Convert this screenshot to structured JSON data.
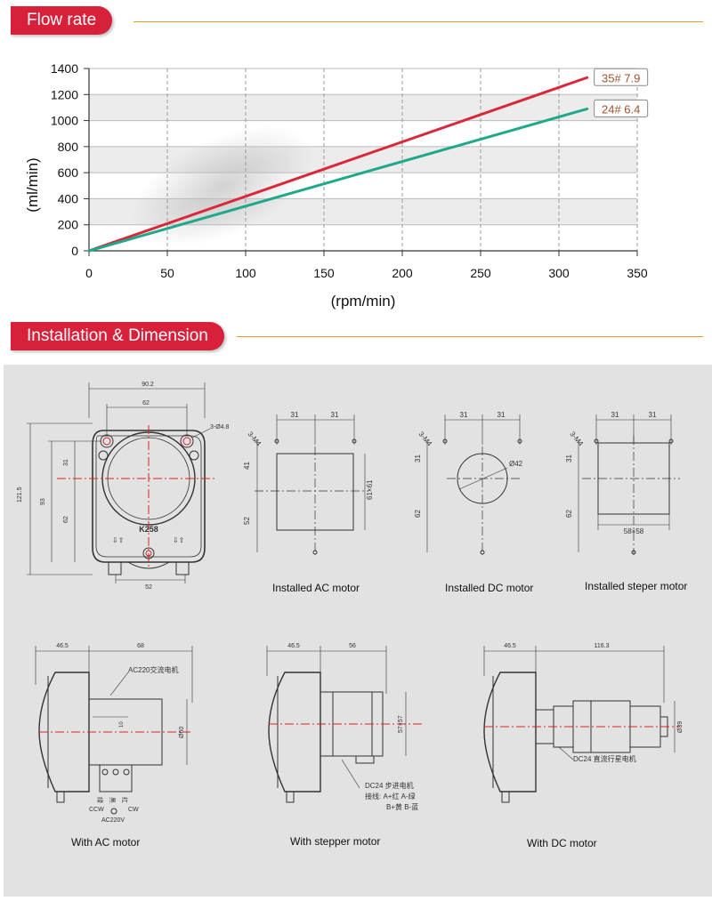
{
  "sections": {
    "flow_rate": "Flow rate",
    "installation": "Installation & Dimension"
  },
  "chart_data": {
    "type": "line",
    "xlabel": "(rpm/min)",
    "ylabel": "(ml/min)",
    "xlim": [
      0,
      350
    ],
    "ylim": [
      0,
      1400
    ],
    "xticks": [
      0,
      50,
      100,
      150,
      200,
      250,
      300,
      350
    ],
    "yticks": [
      0,
      200,
      400,
      600,
      800,
      1000,
      1200,
      1400
    ],
    "grid": true,
    "series": [
      {
        "name": "35# 7.9",
        "color": "#d8283a",
        "x": [
          0,
          318
        ],
        "y": [
          0,
          1330
        ]
      },
      {
        "name": "24# 6.4",
        "color": "#1fa88a",
        "x": [
          0,
          318
        ],
        "y": [
          0,
          1090
        ]
      }
    ]
  },
  "drawings": {
    "front": {
      "width": "90.2",
      "inner_width": "62",
      "height": "121.5",
      "h93": "93",
      "h31": "31",
      "h62": "62",
      "bottom": "52",
      "holes": "3-Ø4.8",
      "model": "K258"
    },
    "ac_install": {
      "screw": "3-M4",
      "d1": "31",
      "d2": "31",
      "h41": "41",
      "h52": "52",
      "square": "61×61"
    },
    "dc_install": {
      "screw": "3-M4",
      "d1": "31",
      "d2": "31",
      "h31": "31",
      "h62": "62",
      "dia": "Ø42"
    },
    "step_install": {
      "screw": "3-M4",
      "d1": "31",
      "d2": "31",
      "h31": "31",
      "h62": "62",
      "square": "58×58"
    },
    "ac_side": {
      "w1": "46.5",
      "w2": "68",
      "label": "AC220交流电机",
      "dia": "Ø60",
      "h10": "10",
      "ccw": "CCW",
      "cw": "CW",
      "power": "AC220V",
      "wires": [
        "绿",
        "黑",
        "红"
      ]
    },
    "step_side": {
      "w1": "46.5",
      "w2": "56",
      "label": "DC24 步进电机",
      "size": "57×57",
      "wire1": "接线: A+红  A-绿",
      "wire2": "B+黄  B-蓝"
    },
    "dc_side": {
      "w1": "46.5",
      "w2": "116.3",
      "label": "DC24 直流行星电机",
      "dia": "Ø39"
    }
  },
  "captions": {
    "installed_ac": "Installed AC motor",
    "installed_dc": "Installed DC motor",
    "installed_step": "Installed steper motor",
    "with_ac": "With AC motor",
    "with_stepper": "With stepper motor",
    "with_dc": "With DC motor"
  }
}
